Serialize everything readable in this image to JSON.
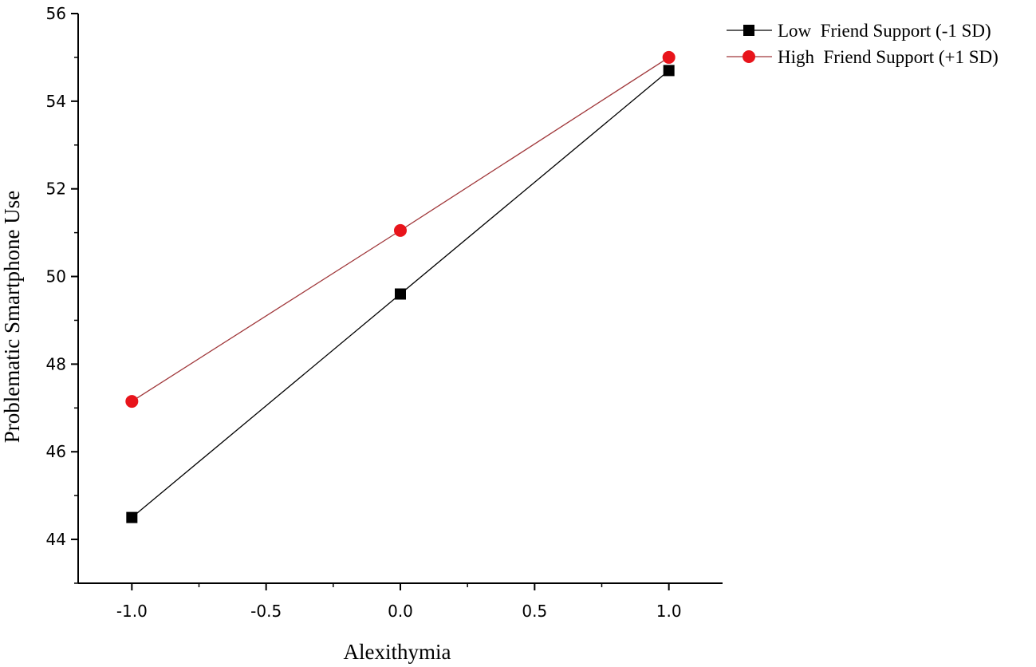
{
  "chart_data": {
    "type": "line",
    "title": "",
    "xlabel": "Alexithymia",
    "ylabel": "Problematic Smartphone Use",
    "xlim": [
      -1.2,
      1.2
    ],
    "ylim": [
      43,
      56
    ],
    "x_ticks": [
      "-1.0",
      "-0.5",
      "0.0",
      "0.5",
      "1.0"
    ],
    "x_tick_values": [
      -1.0,
      -0.5,
      0.0,
      0.5,
      1.0
    ],
    "y_ticks": [
      "44",
      "46",
      "48",
      "50",
      "52",
      "54",
      "56"
    ],
    "y_tick_values": [
      44,
      46,
      48,
      50,
      52,
      54,
      56
    ],
    "x": [
      -1.0,
      0.0,
      1.0
    ],
    "series": [
      {
        "name": "Low  Friend Support (-1 SD)",
        "values": [
          44.5,
          49.6,
          54.7
        ],
        "color": "#000000",
        "line_color": "#000000",
        "marker": "square"
      },
      {
        "name": "High  Friend Support (+1 SD)",
        "values": [
          47.15,
          51.05,
          55.0
        ],
        "color": "#e8141b",
        "line_color": "#a0373a",
        "marker": "circle"
      }
    ],
    "grid": false,
    "legend_position": "top-right"
  }
}
